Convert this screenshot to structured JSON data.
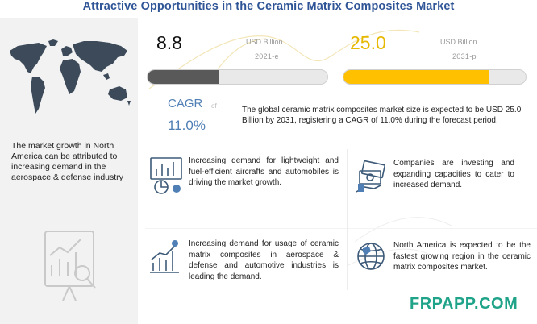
{
  "title": "Attractive Opportunities in the Ceramic Matrix Composites Market",
  "left": {
    "text": "The market growth in North America can be attributed to increasing demand in the aerospace & defense industry"
  },
  "stats": {
    "left_value": "8.8",
    "left_unit": "USD Billion",
    "left_year": "2021-e",
    "left_fill_fraction": 0.4,
    "left_fill_color": "#595959",
    "right_value": "25.0",
    "right_unit": "USD Billion",
    "right_year": "2031-p",
    "right_fill_fraction": 0.8,
    "right_fill_color": "#ffc000"
  },
  "cagr": {
    "label": "CAGR",
    "of_text": "of",
    "value": "11.0%"
  },
  "summary": "The global ceramic matrix composites market size is expected to be USD 25.0 Billion by 2031, registering a CAGR of 11.0% during the forecast period.",
  "cards": [
    {
      "icon": "analytics-icon",
      "text": "Increasing demand for lightweight and fuel-efficient aircrafts and automobiles is driving the market growth."
    },
    {
      "icon": "money-icon",
      "text": "Companies are investing and expanding capacities to cater to increased demand."
    },
    {
      "icon": "growth-chart-icon",
      "text": "Increasing demand for usage of ceramic matrix composites in aerospace & defense and automotive industries is leading the demand."
    },
    {
      "icon": "globe-icon",
      "text": "North America is expected to be the fastest growing region in the ceramic matrix composites market."
    }
  ],
  "brand": "FRPAPP.COM",
  "colors": {
    "title": "#2f5597",
    "accent_blue": "#4f7fb5",
    "accent_gold": "#ffc000",
    "brand_green": "#1fa389"
  }
}
